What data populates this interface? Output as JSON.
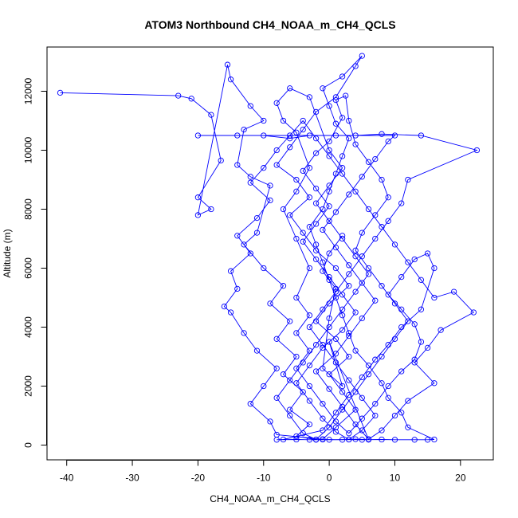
{
  "chart_data": {
    "type": "line",
    "title": "ATOM3 Northbound CH4_NOAA_m_CH4_QCLS",
    "xlabel": "CH4_NOAA_m_CH4_QCLS",
    "ylabel": "Altitude (m)",
    "xlim": [
      -43,
      25
    ],
    "ylim": [
      -500,
      13500
    ],
    "x_ticks": [
      -40,
      -30,
      -20,
      -10,
      0,
      10,
      20
    ],
    "y_ticks": [
      0,
      2000,
      4000,
      6000,
      8000,
      10000,
      12000
    ],
    "grid": false,
    "marker": "open-circle",
    "series": [
      {
        "color": "#0000ff",
        "points": [
          [
            -41,
            11950
          ],
          [
            -23,
            11850
          ],
          [
            -21,
            11750
          ],
          [
            -18,
            11200
          ],
          [
            -16.5,
            9650
          ],
          [
            -20,
            8400
          ],
          [
            -18,
            8000
          ],
          [
            -20,
            7800
          ],
          [
            -15.5,
            12900
          ],
          [
            -15,
            12400
          ],
          [
            -12,
            11500
          ],
          [
            -10,
            11000
          ],
          [
            -13,
            10700
          ],
          [
            -14,
            9500
          ],
          [
            -12,
            9100
          ],
          [
            -9,
            8800
          ],
          [
            -11,
            7200
          ],
          [
            -13,
            6800
          ],
          [
            -10,
            6000
          ],
          [
            -7,
            5400
          ],
          [
            -9,
            4800
          ],
          [
            -6,
            4200
          ],
          [
            -8,
            3600
          ],
          [
            -5,
            3000
          ],
          [
            -7,
            2400
          ],
          [
            -4,
            1800
          ],
          [
            -6,
            1200
          ],
          [
            -3,
            700
          ],
          [
            -5,
            300
          ],
          [
            -2,
            180
          ],
          [
            0,
            180
          ],
          [
            3,
            190
          ],
          [
            5,
            180
          ],
          [
            8,
            190
          ],
          [
            10,
            180
          ],
          [
            13,
            180
          ],
          [
            15,
            180
          ],
          [
            16,
            190
          ],
          [
            12,
            600
          ],
          [
            11,
            1100
          ],
          [
            9,
            1600
          ],
          [
            8,
            2100
          ],
          [
            6,
            2700
          ],
          [
            4,
            3200
          ],
          [
            3,
            3800
          ],
          [
            2,
            4400
          ],
          [
            1,
            5000
          ],
          [
            0,
            5600
          ],
          [
            -1,
            6200
          ],
          [
            -2,
            6800
          ],
          [
            -3,
            7400
          ],
          [
            -1,
            8000
          ],
          [
            0,
            8600
          ],
          [
            1,
            9200
          ],
          [
            2,
            9800
          ],
          [
            3,
            10400
          ],
          [
            1,
            10900
          ],
          [
            0,
            11500
          ],
          [
            -1,
            12100
          ],
          [
            2,
            12500
          ],
          [
            5,
            13200
          ],
          [
            4,
            12850
          ],
          [
            1,
            11800
          ],
          [
            -2,
            11300
          ],
          [
            -4,
            10700
          ],
          [
            -6,
            10100
          ],
          [
            -8,
            9500
          ],
          [
            -5,
            9000
          ],
          [
            -3,
            8400
          ],
          [
            -6,
            7800
          ],
          [
            -4,
            7200
          ],
          [
            -2,
            6600
          ],
          [
            1,
            6000
          ],
          [
            3,
            5400
          ],
          [
            0,
            4800
          ],
          [
            -2,
            4200
          ],
          [
            1,
            3600
          ],
          [
            3,
            3000
          ],
          [
            0,
            2400
          ],
          [
            2,
            1800
          ],
          [
            4,
            1200
          ],
          [
            1,
            600
          ],
          [
            -1,
            200
          ],
          [
            -8,
            350
          ],
          [
            -9,
            800
          ],
          [
            -12,
            1400
          ],
          [
            -10,
            2000
          ],
          [
            -8,
            2600
          ],
          [
            -11,
            3200
          ],
          [
            -13,
            3800
          ],
          [
            -15,
            4500
          ],
          [
            -16,
            4700
          ],
          [
            -14,
            5300
          ],
          [
            -15,
            5900
          ],
          [
            -12,
            6500
          ],
          [
            -14,
            7100
          ],
          [
            -11,
            7700
          ],
          [
            -9,
            8300
          ],
          [
            -12,
            8900
          ],
          [
            -10,
            9400
          ],
          [
            -8,
            10000
          ],
          [
            -6,
            10500
          ],
          [
            -4,
            11000
          ],
          [
            -2,
            10400
          ],
          [
            0,
            9800
          ],
          [
            2,
            9200
          ],
          [
            4,
            8600
          ],
          [
            6,
            8000
          ],
          [
            8,
            7400
          ],
          [
            10,
            6800
          ],
          [
            12,
            6200
          ],
          [
            14,
            5600
          ],
          [
            16,
            5000
          ],
          [
            19,
            5200
          ],
          [
            22,
            4500
          ],
          [
            17,
            3900
          ],
          [
            15,
            3300
          ],
          [
            13,
            2800
          ],
          [
            16,
            2100
          ],
          [
            12,
            1500
          ],
          [
            10,
            1000
          ],
          [
            8,
            500
          ],
          [
            6,
            200
          ],
          [
            4,
            700
          ],
          [
            2,
            1300
          ],
          [
            0,
            1900
          ],
          [
            -2,
            2500
          ],
          [
            1,
            3100
          ],
          [
            3,
            3700
          ],
          [
            5,
            4300
          ],
          [
            7,
            4900
          ],
          [
            5,
            5500
          ],
          [
            3,
            6100
          ],
          [
            1,
            6700
          ],
          [
            -1,
            7300
          ],
          [
            1,
            7900
          ],
          [
            3,
            8500
          ],
          [
            5,
            9100
          ],
          [
            7,
            9700
          ],
          [
            9,
            10300
          ],
          [
            10,
            10500
          ],
          [
            -20,
            10500
          ],
          [
            -14,
            10500
          ],
          [
            -10,
            10500
          ],
          [
            -6,
            10400
          ],
          [
            -3,
            10500
          ],
          [
            1,
            10500
          ],
          [
            4,
            10500
          ],
          [
            8,
            10550
          ],
          [
            14,
            10500
          ],
          [
            22.5,
            10000
          ],
          [
            12,
            9000
          ],
          [
            11,
            8200
          ],
          [
            9,
            7600
          ],
          [
            7,
            7000
          ],
          [
            5,
            6400
          ],
          [
            3,
            5800
          ],
          [
            1,
            5200
          ],
          [
            -1,
            4600
          ],
          [
            -3,
            4000
          ],
          [
            -1,
            3400
          ],
          [
            1,
            2800
          ],
          [
            3,
            2200
          ],
          [
            5,
            1600
          ],
          [
            7,
            1000
          ],
          [
            5,
            500
          ],
          [
            3,
            190
          ],
          [
            1,
            450
          ],
          [
            -1,
            900
          ],
          [
            -3,
            1500
          ],
          [
            -5,
            2100
          ],
          [
            -3,
            2700
          ],
          [
            -1,
            3300
          ],
          [
            2,
            3900
          ],
          [
            4,
            4500
          ],
          [
            2,
            5100
          ],
          [
            0,
            5700
          ],
          [
            -2,
            6300
          ],
          [
            -4,
            6900
          ],
          [
            -2,
            7500
          ],
          [
            0,
            8100
          ],
          [
            -2,
            8700
          ],
          [
            -4,
            9300
          ],
          [
            -2,
            9900
          ],
          [
            0,
            10300
          ],
          [
            2,
            11100
          ],
          [
            1,
            11700
          ],
          [
            2.5,
            11850
          ],
          [
            3,
            11000
          ],
          [
            4,
            10200
          ],
          [
            6,
            9600
          ],
          [
            8,
            9000
          ],
          [
            9,
            8400
          ],
          [
            7,
            7800
          ],
          [
            5,
            7200
          ],
          [
            4,
            6600
          ],
          [
            6,
            6000
          ],
          [
            8,
            5400
          ],
          [
            10,
            4800
          ],
          [
            12,
            4200
          ],
          [
            10,
            3600
          ],
          [
            8,
            3000
          ],
          [
            6,
            2400
          ],
          [
            4,
            1800
          ],
          [
            2,
            1200
          ],
          [
            0,
            600
          ],
          [
            -2,
            190
          ],
          [
            -4,
            400
          ],
          [
            -6,
            1000
          ],
          [
            -8,
            1600
          ],
          [
            -6,
            2200
          ],
          [
            -4,
            2800
          ],
          [
            -2,
            3400
          ],
          [
            0,
            4000
          ],
          [
            2,
            4600
          ],
          [
            4,
            5200
          ],
          [
            6,
            5800
          ],
          [
            4,
            6400
          ],
          [
            2,
            7000
          ],
          [
            0,
            7600
          ],
          [
            -2,
            8200
          ],
          [
            0,
            8800
          ],
          [
            2,
            9400
          ],
          [
            0,
            10000
          ],
          [
            -3,
            11800
          ],
          [
            -6,
            12100
          ],
          [
            -8,
            11600
          ],
          [
            -7,
            11000
          ],
          [
            -5,
            10600
          ],
          [
            -3,
            9400
          ],
          [
            -5,
            8600
          ],
          [
            -7,
            8000
          ],
          [
            -5,
            7000
          ],
          [
            -3,
            6000
          ],
          [
            -5,
            5000
          ],
          [
            -3,
            4400
          ],
          [
            -5,
            3800
          ],
          [
            -3,
            3200
          ],
          [
            -5,
            2600
          ],
          [
            -3,
            2000
          ],
          [
            -1,
            1400
          ],
          [
            1,
            800
          ],
          [
            3,
            400
          ],
          [
            5,
            900
          ],
          [
            7,
            1400
          ],
          [
            9,
            2000
          ],
          [
            11,
            2500
          ],
          [
            13,
            2900
          ],
          [
            14,
            3500
          ],
          [
            13,
            4100
          ],
          [
            11,
            4600
          ],
          [
            9,
            5100
          ],
          [
            11,
            5700
          ],
          [
            13,
            6300
          ],
          [
            15,
            6500
          ],
          [
            16,
            6000
          ],
          [
            14,
            4600
          ],
          [
            11,
            4000
          ],
          [
            9,
            3400
          ],
          [
            7,
            2900
          ],
          [
            5,
            2300
          ],
          [
            3,
            1700
          ],
          [
            1,
            1100
          ],
          [
            -1,
            500
          ],
          [
            -7,
            190
          ],
          [
            -8,
            180
          ],
          [
            -5,
            190
          ],
          [
            -3,
            180
          ],
          [
            -1,
            190
          ],
          [
            2,
            180
          ],
          [
            4,
            200
          ],
          [
            6,
            185
          ],
          [
            0,
            3500
          ],
          [
            2,
            2000
          ],
          [
            -1,
            2600
          ],
          [
            0,
            4300
          ],
          [
            1,
            5300
          ],
          [
            -1,
            5900
          ],
          [
            0,
            6500
          ],
          [
            2,
            7100
          ]
        ]
      }
    ]
  }
}
